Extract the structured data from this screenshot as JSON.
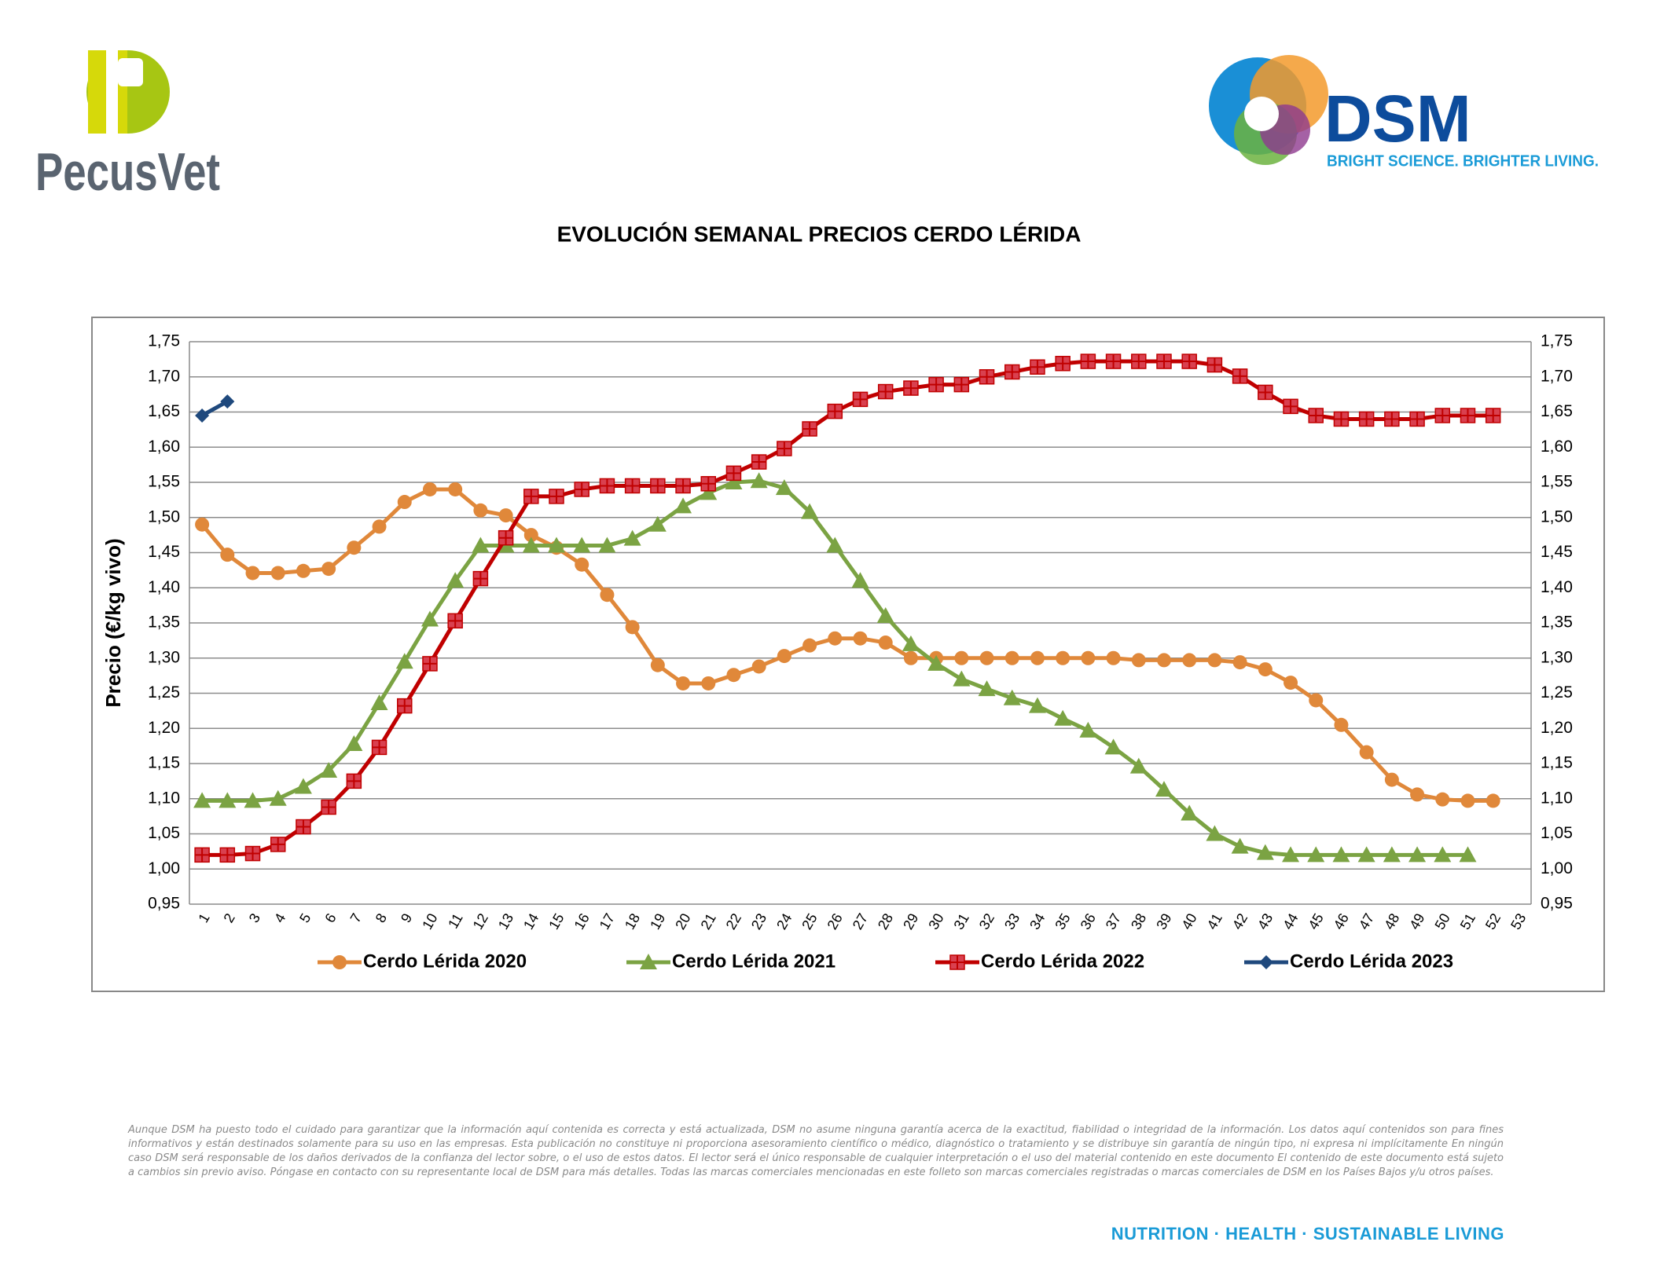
{
  "brand_left": "PecusVet",
  "brand_right": {
    "name": "DSM",
    "tagline": "BRIGHT SCIENCE. BRIGHTER LIVING."
  },
  "chart_data": {
    "type": "line",
    "title": "EVOLUCIÓN SEMANAL PRECIOS CERDO LÉRIDA",
    "y_label": "Precio (€/kg vivo)",
    "categories": [
      "1",
      "2",
      "3",
      "4",
      "5",
      "6",
      "7",
      "8",
      "9",
      "10",
      "11",
      "12",
      "13",
      "14",
      "15",
      "16",
      "17",
      "18",
      "19",
      "20",
      "21",
      "22",
      "23",
      "24",
      "25",
      "26",
      "27",
      "28",
      "29",
      "30",
      "31",
      "32",
      "33",
      "34",
      "35",
      "36",
      "37",
      "38",
      "39",
      "40",
      "41",
      "42",
      "43",
      "44",
      "45",
      "46",
      "47",
      "48",
      "49",
      "50",
      "51",
      "52",
      "53"
    ],
    "ylim": [
      0.95,
      1.75
    ],
    "yticks": [
      {
        "value": 0.95,
        "label": "0,95"
      },
      {
        "value": 1.0,
        "label": "1,00"
      },
      {
        "value": 1.05,
        "label": "1,05"
      },
      {
        "value": 1.1,
        "label": "1,10"
      },
      {
        "value": 1.15,
        "label": "1,15"
      },
      {
        "value": 1.2,
        "label": "1,20"
      },
      {
        "value": 1.25,
        "label": "1,25"
      },
      {
        "value": 1.3,
        "label": "1,30"
      },
      {
        "value": 1.35,
        "label": "1,35"
      },
      {
        "value": 1.4,
        "label": "1,40"
      },
      {
        "value": 1.45,
        "label": "1,45"
      },
      {
        "value": 1.5,
        "label": "1,50"
      },
      {
        "value": 1.55,
        "label": "1,55"
      },
      {
        "value": 1.6,
        "label": "1,60"
      },
      {
        "value": 1.65,
        "label": "1,65"
      },
      {
        "value": 1.7,
        "label": "1,70"
      },
      {
        "value": 1.75,
        "label": "1,75"
      }
    ],
    "grid": true,
    "legend": "bottom",
    "series": [
      {
        "name": "Cerdo Lérida 2020",
        "color": "#E0883A",
        "marker": "circle",
        "values": [
          1.49,
          1.447,
          1.421,
          1.421,
          1.424,
          1.427,
          1.457,
          1.487,
          1.522,
          1.54,
          1.54,
          1.51,
          1.503,
          1.475,
          1.457,
          1.433,
          1.39,
          1.344,
          1.29,
          1.264,
          1.264,
          1.276,
          1.288,
          1.303,
          1.318,
          1.328,
          1.328,
          1.322,
          1.3,
          1.3,
          1.3,
          1.3,
          1.3,
          1.3,
          1.3,
          1.3,
          1.3,
          1.297,
          1.297,
          1.297,
          1.297,
          1.294,
          1.284,
          1.265,
          1.24,
          1.205,
          1.166,
          1.127,
          1.106,
          1.099,
          1.097,
          1.097,
          null
        ]
      },
      {
        "name": "Cerdo Lérida 2021",
        "color": "#7BA343",
        "marker": "triangle",
        "values": [
          1.097,
          1.097,
          1.097,
          1.1,
          1.117,
          1.14,
          1.178,
          1.236,
          1.295,
          1.355,
          1.41,
          1.46,
          1.46,
          1.46,
          1.46,
          1.46,
          1.46,
          1.47,
          1.49,
          1.516,
          1.535,
          1.55,
          1.552,
          1.542,
          1.508,
          1.46,
          1.41,
          1.36,
          1.32,
          1.292,
          1.27,
          1.256,
          1.243,
          1.232,
          1.214,
          1.197,
          1.173,
          1.146,
          1.113,
          1.079,
          1.05,
          1.032,
          1.023,
          1.02,
          1.02,
          1.02,
          1.02,
          1.02,
          1.02,
          1.02,
          1.02,
          null,
          null
        ]
      },
      {
        "name": "Cerdo Lérida 2022",
        "color": "#C00000",
        "marker": "square",
        "values": [
          1.02,
          1.02,
          1.022,
          1.035,
          1.06,
          1.088,
          1.125,
          1.173,
          1.232,
          1.292,
          1.353,
          1.413,
          1.471,
          1.53,
          1.53,
          1.54,
          1.545,
          1.545,
          1.545,
          1.545,
          1.548,
          1.563,
          1.579,
          1.598,
          1.626,
          1.651,
          1.668,
          1.679,
          1.684,
          1.689,
          1.689,
          1.7,
          1.707,
          1.714,
          1.719,
          1.722,
          1.722,
          1.722,
          1.722,
          1.722,
          1.717,
          1.701,
          1.678,
          1.658,
          1.645,
          1.64,
          1.64,
          1.64,
          1.64,
          1.645,
          1.645,
          1.645,
          null
        ]
      },
      {
        "name": "Cerdo Lérida 2023",
        "color": "#1F497D",
        "marker": "diamond",
        "values": [
          1.645,
          1.665,
          null,
          null,
          null,
          null,
          null,
          null,
          null,
          null,
          null,
          null,
          null,
          null,
          null,
          null,
          null,
          null,
          null,
          null,
          null,
          null,
          null,
          null,
          null,
          null,
          null,
          null,
          null,
          null,
          null,
          null,
          null,
          null,
          null,
          null,
          null,
          null,
          null,
          null,
          null,
          null,
          null,
          null,
          null,
          null,
          null,
          null,
          null,
          null,
          null,
          null,
          null
        ]
      }
    ]
  },
  "disclaimer": "Aunque DSM ha puesto todo el cuidado para garantizar que la información aquí contenida es correcta y está actualizada, DSM no asume ninguna garantía acerca de la exactitud, fiabilidad o integridad de la información. Los datos aquí contenidos son para fines informativos y están destinados solamente para su uso en las empresas. Esta publicación no constituye ni proporciona asesoramiento científico o médico, diagnóstico o tratamiento y se distribuye sin garantía de ningún tipo, ni expresa ni implícitamente En ningún caso DSM será responsable de los daños derivados de la confianza del lector sobre, o el uso de estos datos. El lector será el único responsable de cualquier interpretación o el uso del material contenido en este documento El contenido de este documento está sujeto a cambios sin previo aviso. Póngase en contacto con su representante local de DSM para más detalles. Todas las marcas comerciales mencionadas en este folleto son marcas comerciales registradas o marcas comerciales de DSM en los Países Bajos y/u otros países.",
  "footer": "NUTRITION · HEALTH · SUSTAINABLE LIVING"
}
